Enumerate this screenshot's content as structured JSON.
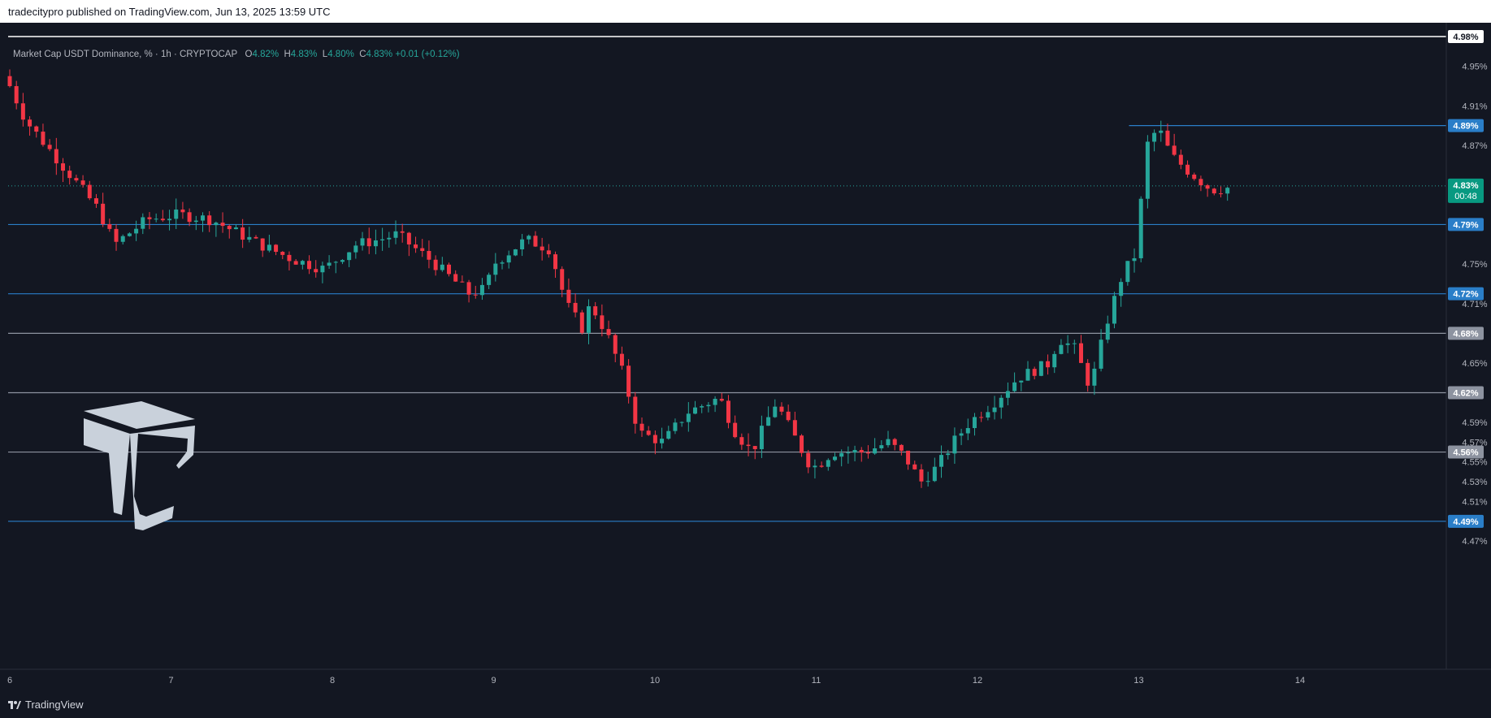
{
  "header": {
    "published": "tradecitypro published on TradingView.com, Jun 13, 2025 13:59 UTC"
  },
  "legend": {
    "symbol": "Market Cap USDT Dominance, %",
    "interval": "1h",
    "exchange": "CRYPTOCAP",
    "open": "4.82%",
    "high": "4.83%",
    "low": "4.80%",
    "close": "4.83%",
    "change": "+0.01 (+0.12%)"
  },
  "footer": {
    "brand": "TradingView"
  },
  "colors": {
    "up": "#26a69a",
    "down": "#f23645",
    "background": "#131722",
    "hline_blue": "#2962ff",
    "hline_gray": "#787b86"
  },
  "chart_data": {
    "type": "candlestick",
    "ylim": [
      4.455,
      4.99
    ],
    "xlim": [
      6.0,
      14.9
    ],
    "x_ticks": [
      "6",
      "7",
      "8",
      "9",
      "10",
      "11",
      "12",
      "13",
      "14"
    ],
    "y_ticks": [
      "4.95%",
      "4.91%",
      "4.87%",
      "4.75%",
      "4.71%",
      "4.65%",
      "4.59%",
      "4.57%",
      "4.55%",
      "4.53%",
      "4.51%",
      "4.47%"
    ],
    "current_price": {
      "label": "4.83%",
      "countdown": "00:48",
      "value": 4.829
    },
    "horizontal_levels": [
      {
        "value": 4.98,
        "label": "4.98%",
        "style": "white"
      },
      {
        "value": 4.89,
        "label": "4.89%",
        "style": "blue",
        "start_x": 13.0
      },
      {
        "value": 4.79,
        "label": "4.79%",
        "style": "blue"
      },
      {
        "value": 4.72,
        "label": "4.72%",
        "style": "blue"
      },
      {
        "value": 4.68,
        "label": "4.68%",
        "style": "gray"
      },
      {
        "value": 4.62,
        "label": "4.62%",
        "style": "gray"
      },
      {
        "value": 4.56,
        "label": "4.56%",
        "style": "gray"
      },
      {
        "value": 4.49,
        "label": "4.49%",
        "style": "blue"
      }
    ],
    "waypoints": [
      [
        6.0,
        4.93
      ],
      [
        6.1,
        4.895
      ],
      [
        6.3,
        4.855
      ],
      [
        6.55,
        4.805
      ],
      [
        6.65,
        4.77
      ],
      [
        6.85,
        4.795
      ],
      [
        7.05,
        4.8
      ],
      [
        7.25,
        4.795
      ],
      [
        7.55,
        4.77
      ],
      [
        7.75,
        4.755
      ],
      [
        7.95,
        4.745
      ],
      [
        8.15,
        4.77
      ],
      [
        8.3,
        4.775
      ],
      [
        8.4,
        4.78
      ],
      [
        8.6,
        4.755
      ],
      [
        8.85,
        4.72
      ],
      [
        8.95,
        4.725
      ],
      [
        9.0,
        4.75
      ],
      [
        9.2,
        4.775
      ],
      [
        9.35,
        4.765
      ],
      [
        9.45,
        4.71
      ],
      [
        9.55,
        4.685
      ],
      [
        9.6,
        4.71
      ],
      [
        9.7,
        4.68
      ],
      [
        9.8,
        4.64
      ],
      [
        9.9,
        4.58
      ],
      [
        10.05,
        4.57
      ],
      [
        10.2,
        4.6
      ],
      [
        10.4,
        4.615
      ],
      [
        10.5,
        4.58
      ],
      [
        10.6,
        4.56
      ],
      [
        10.75,
        4.61
      ],
      [
        10.85,
        4.58
      ],
      [
        10.95,
        4.55
      ],
      [
        11.0,
        4.545
      ],
      [
        11.1,
        4.56
      ],
      [
        11.3,
        4.56
      ],
      [
        11.45,
        4.57
      ],
      [
        11.55,
        4.555
      ],
      [
        11.65,
        4.53
      ],
      [
        11.75,
        4.545
      ],
      [
        11.85,
        4.57
      ],
      [
        11.95,
        4.59
      ],
      [
        12.1,
        4.61
      ],
      [
        12.25,
        4.635
      ],
      [
        12.45,
        4.65
      ],
      [
        12.5,
        4.675
      ],
      [
        12.6,
        4.665
      ],
      [
        12.7,
        4.625
      ],
      [
        12.8,
        4.69
      ],
      [
        12.9,
        4.74
      ],
      [
        12.98,
        4.76
      ],
      [
        13.05,
        4.87
      ],
      [
        13.12,
        4.888
      ],
      [
        13.2,
        4.86
      ],
      [
        13.3,
        4.845
      ],
      [
        13.45,
        4.825
      ],
      [
        13.55,
        4.827
      ]
    ],
    "candles_count": 184
  }
}
